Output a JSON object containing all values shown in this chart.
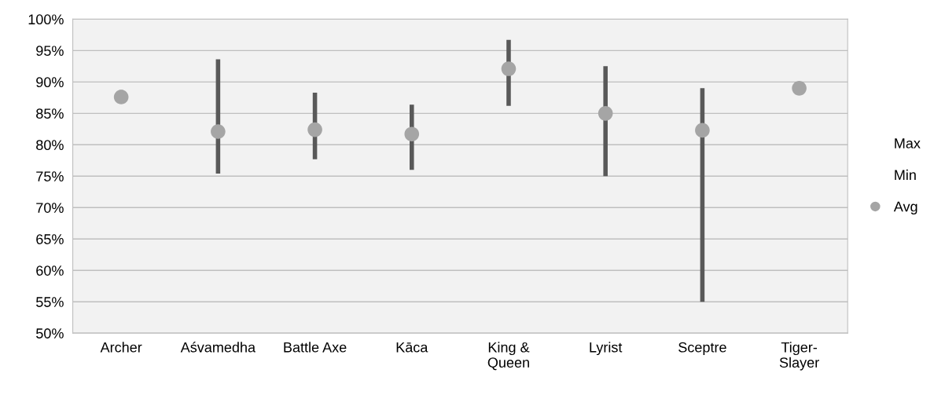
{
  "chart_data": {
    "type": "scatter",
    "categories": [
      "Archer",
      "Aśvamedha",
      "Battle Axe",
      "Kāca",
      "King &\nQueen",
      "Lyrist",
      "Sceptre",
      "Tiger-\nSlayer"
    ],
    "series": [
      {
        "name": "Avg",
        "color": "#a5a5a5",
        "marker": "circle",
        "values": [
          87.6,
          82.1,
          82.4,
          81.7,
          92.1,
          85.0,
          82.3,
          89.0
        ],
        "errors": [
          [
            87.6,
            88.7
          ],
          [
            75.4,
            93.6
          ],
          [
            77.7,
            88.3
          ],
          [
            76.0,
            86.4
          ],
          [
            86.2,
            96.7
          ],
          [
            75.0,
            92.5
          ],
          [
            55.0,
            89.0
          ],
          null
        ]
      }
    ],
    "annotations": [
      "Max",
      "Min"
    ],
    "ylim": [
      50,
      100
    ],
    "yticks": [
      {
        "value": 50,
        "label": "50%"
      },
      {
        "value": 55,
        "label": "55%"
      },
      {
        "value": 60,
        "label": "60%"
      },
      {
        "value": 65,
        "label": "65%"
      },
      {
        "value": 70,
        "label": "70%"
      },
      {
        "value": 75,
        "label": "75%"
      },
      {
        "value": 80,
        "label": "80%"
      },
      {
        "value": 85,
        "label": "85%"
      },
      {
        "value": 90,
        "label": "90%"
      },
      {
        "value": 95,
        "label": "95%"
      },
      {
        "value": 100,
        "label": "100%"
      }
    ],
    "grid": "y",
    "legend": "right"
  }
}
